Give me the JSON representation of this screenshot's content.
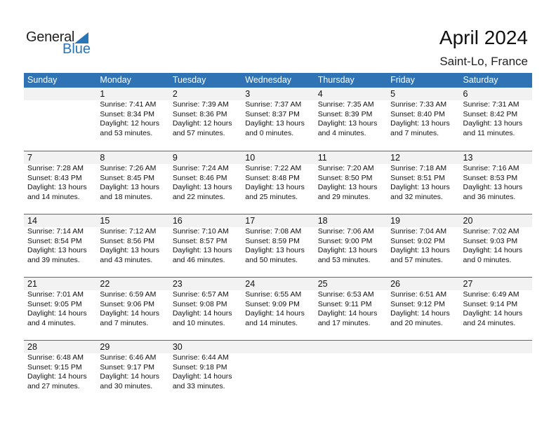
{
  "logo": {
    "word1": "General",
    "word2": "Blue"
  },
  "title": "April 2024",
  "location": "Saint-Lo, France",
  "colors": {
    "accent": "#2f73b5",
    "band": "#f2f2f2"
  },
  "weekdays": [
    "Sunday",
    "Monday",
    "Tuesday",
    "Wednesday",
    "Thursday",
    "Friday",
    "Saturday"
  ],
  "leading_blank_days": 1,
  "days": [
    {
      "day": "1",
      "sunrise": "Sunrise: 7:41 AM",
      "sunset": "Sunset: 8:34 PM",
      "daylight": "Daylight: 12 hours",
      "minutes": "and 53 minutes."
    },
    {
      "day": "2",
      "sunrise": "Sunrise: 7:39 AM",
      "sunset": "Sunset: 8:36 PM",
      "daylight": "Daylight: 12 hours",
      "minutes": "and 57 minutes."
    },
    {
      "day": "3",
      "sunrise": "Sunrise: 7:37 AM",
      "sunset": "Sunset: 8:37 PM",
      "daylight": "Daylight: 13 hours",
      "minutes": "and 0 minutes."
    },
    {
      "day": "4",
      "sunrise": "Sunrise: 7:35 AM",
      "sunset": "Sunset: 8:39 PM",
      "daylight": "Daylight: 13 hours",
      "minutes": "and 4 minutes."
    },
    {
      "day": "5",
      "sunrise": "Sunrise: 7:33 AM",
      "sunset": "Sunset: 8:40 PM",
      "daylight": "Daylight: 13 hours",
      "minutes": "and 7 minutes."
    },
    {
      "day": "6",
      "sunrise": "Sunrise: 7:31 AM",
      "sunset": "Sunset: 8:42 PM",
      "daylight": "Daylight: 13 hours",
      "minutes": "and 11 minutes."
    },
    {
      "day": "7",
      "sunrise": "Sunrise: 7:28 AM",
      "sunset": "Sunset: 8:43 PM",
      "daylight": "Daylight: 13 hours",
      "minutes": "and 14 minutes."
    },
    {
      "day": "8",
      "sunrise": "Sunrise: 7:26 AM",
      "sunset": "Sunset: 8:45 PM",
      "daylight": "Daylight: 13 hours",
      "minutes": "and 18 minutes."
    },
    {
      "day": "9",
      "sunrise": "Sunrise: 7:24 AM",
      "sunset": "Sunset: 8:46 PM",
      "daylight": "Daylight: 13 hours",
      "minutes": "and 22 minutes."
    },
    {
      "day": "10",
      "sunrise": "Sunrise: 7:22 AM",
      "sunset": "Sunset: 8:48 PM",
      "daylight": "Daylight: 13 hours",
      "minutes": "and 25 minutes."
    },
    {
      "day": "11",
      "sunrise": "Sunrise: 7:20 AM",
      "sunset": "Sunset: 8:50 PM",
      "daylight": "Daylight: 13 hours",
      "minutes": "and 29 minutes."
    },
    {
      "day": "12",
      "sunrise": "Sunrise: 7:18 AM",
      "sunset": "Sunset: 8:51 PM",
      "daylight": "Daylight: 13 hours",
      "minutes": "and 32 minutes."
    },
    {
      "day": "13",
      "sunrise": "Sunrise: 7:16 AM",
      "sunset": "Sunset: 8:53 PM",
      "daylight": "Daylight: 13 hours",
      "minutes": "and 36 minutes."
    },
    {
      "day": "14",
      "sunrise": "Sunrise: 7:14 AM",
      "sunset": "Sunset: 8:54 PM",
      "daylight": "Daylight: 13 hours",
      "minutes": "and 39 minutes."
    },
    {
      "day": "15",
      "sunrise": "Sunrise: 7:12 AM",
      "sunset": "Sunset: 8:56 PM",
      "daylight": "Daylight: 13 hours",
      "minutes": "and 43 minutes."
    },
    {
      "day": "16",
      "sunrise": "Sunrise: 7:10 AM",
      "sunset": "Sunset: 8:57 PM",
      "daylight": "Daylight: 13 hours",
      "minutes": "and 46 minutes."
    },
    {
      "day": "17",
      "sunrise": "Sunrise: 7:08 AM",
      "sunset": "Sunset: 8:59 PM",
      "daylight": "Daylight: 13 hours",
      "minutes": "and 50 minutes."
    },
    {
      "day": "18",
      "sunrise": "Sunrise: 7:06 AM",
      "sunset": "Sunset: 9:00 PM",
      "daylight": "Daylight: 13 hours",
      "minutes": "and 53 minutes."
    },
    {
      "day": "19",
      "sunrise": "Sunrise: 7:04 AM",
      "sunset": "Sunset: 9:02 PM",
      "daylight": "Daylight: 13 hours",
      "minutes": "and 57 minutes."
    },
    {
      "day": "20",
      "sunrise": "Sunrise: 7:02 AM",
      "sunset": "Sunset: 9:03 PM",
      "daylight": "Daylight: 14 hours",
      "minutes": "and 0 minutes."
    },
    {
      "day": "21",
      "sunrise": "Sunrise: 7:01 AM",
      "sunset": "Sunset: 9:05 PM",
      "daylight": "Daylight: 14 hours",
      "minutes": "and 4 minutes."
    },
    {
      "day": "22",
      "sunrise": "Sunrise: 6:59 AM",
      "sunset": "Sunset: 9:06 PM",
      "daylight": "Daylight: 14 hours",
      "minutes": "and 7 minutes."
    },
    {
      "day": "23",
      "sunrise": "Sunrise: 6:57 AM",
      "sunset": "Sunset: 9:08 PM",
      "daylight": "Daylight: 14 hours",
      "minutes": "and 10 minutes."
    },
    {
      "day": "24",
      "sunrise": "Sunrise: 6:55 AM",
      "sunset": "Sunset: 9:09 PM",
      "daylight": "Daylight: 14 hours",
      "minutes": "and 14 minutes."
    },
    {
      "day": "25",
      "sunrise": "Sunrise: 6:53 AM",
      "sunset": "Sunset: 9:11 PM",
      "daylight": "Daylight: 14 hours",
      "minutes": "and 17 minutes."
    },
    {
      "day": "26",
      "sunrise": "Sunrise: 6:51 AM",
      "sunset": "Sunset: 9:12 PM",
      "daylight": "Daylight: 14 hours",
      "minutes": "and 20 minutes."
    },
    {
      "day": "27",
      "sunrise": "Sunrise: 6:49 AM",
      "sunset": "Sunset: 9:14 PM",
      "daylight": "Daylight: 14 hours",
      "minutes": "and 24 minutes."
    },
    {
      "day": "28",
      "sunrise": "Sunrise: 6:48 AM",
      "sunset": "Sunset: 9:15 PM",
      "daylight": "Daylight: 14 hours",
      "minutes": "and 27 minutes."
    },
    {
      "day": "29",
      "sunrise": "Sunrise: 6:46 AM",
      "sunset": "Sunset: 9:17 PM",
      "daylight": "Daylight: 14 hours",
      "minutes": "and 30 minutes."
    },
    {
      "day": "30",
      "sunrise": "Sunrise: 6:44 AM",
      "sunset": "Sunset: 9:18 PM",
      "daylight": "Daylight: 14 hours",
      "minutes": "and 33 minutes."
    }
  ]
}
